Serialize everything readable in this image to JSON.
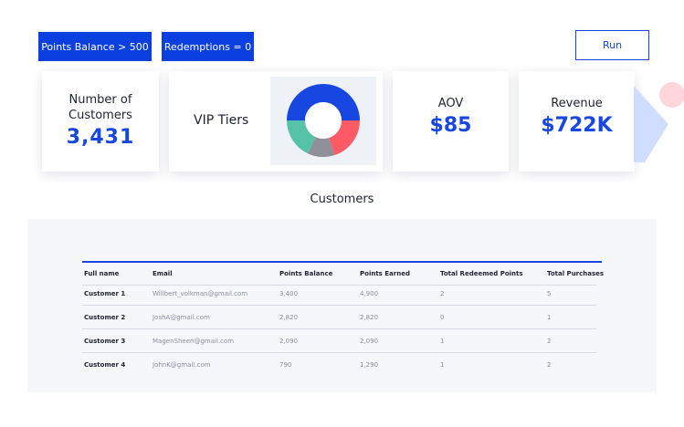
{
  "filters": [
    {
      "label": "Points Balance > 500"
    },
    {
      "label": "Redemptions = 0"
    }
  ],
  "run_button": {
    "label": "Run"
  },
  "metrics": {
    "customers": {
      "label_line1": "Number of",
      "label_line2": "Customers",
      "value": "3,431"
    },
    "vip": {
      "label": "VIP Tiers"
    },
    "aov": {
      "label": "AOV",
      "value": "$85"
    },
    "revenue": {
      "label": "Revenue",
      "value": "$722K"
    }
  },
  "chart_data": {
    "type": "pie",
    "donut": true,
    "title": "",
    "slices": [
      {
        "value": 50,
        "color": "#1746e0"
      },
      {
        "value": 20,
        "color": "#ff5a66"
      },
      {
        "value": 12,
        "color": "#8f8f9a"
      },
      {
        "value": 18,
        "color": "#56c3a6"
      }
    ]
  },
  "table": {
    "title": "Customers",
    "columns": [
      "Full name",
      "Email",
      "Points Balance",
      "Points Earned",
      "Total Redeemed Points",
      "Total Purchases"
    ],
    "rows": [
      [
        "Customer 1",
        "Willbert_volkman@gmail.com",
        "3,400",
        "4,900",
        "2",
        "5"
      ],
      [
        "Customer 2",
        "JoshA@gmail.com",
        "2,820",
        "2,820",
        "0",
        "1"
      ],
      [
        "Customer 3",
        "MagenSheen@gmail.com",
        "2,090",
        "2,090",
        "1",
        "2"
      ],
      [
        "Customer 4",
        "JohnK@gmail.com",
        "790",
        "1,290",
        "1",
        "2"
      ]
    ]
  },
  "colors": {
    "accent": "#1746e0",
    "panel": "#f5f7fa"
  }
}
